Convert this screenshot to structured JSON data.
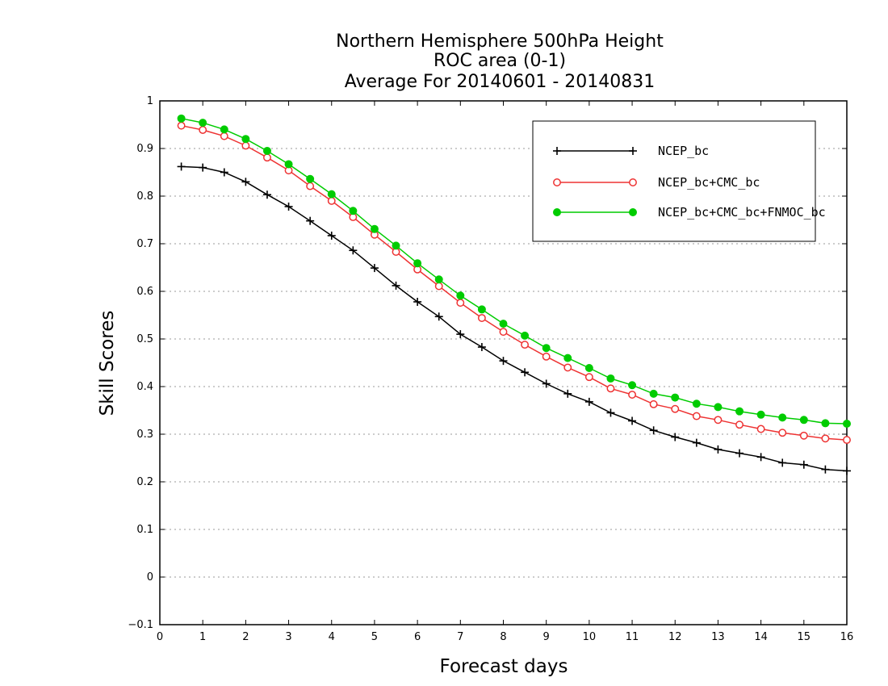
{
  "chart_data": {
    "type": "line",
    "title": [
      "Northern Hemisphere 500hPa Height",
      "ROC area (0-1)",
      "Average For 20140601 - 20140831"
    ],
    "xlabel": "Forecast days",
    "ylabel": "Skill Scores",
    "xlim": [
      0,
      16
    ],
    "ylim": [
      -0.1,
      1
    ],
    "x_ticks": [
      "0",
      "1",
      "2",
      "3",
      "4",
      "5",
      "6",
      "7",
      "8",
      "9",
      "10",
      "11",
      "12",
      "13",
      "14",
      "15",
      "16"
    ],
    "y_ticks": [
      "−0.1",
      "0",
      "0.1",
      "0.2",
      "0.3",
      "0.4",
      "0.5",
      "0.6",
      "0.7",
      "0.8",
      "0.9",
      "1"
    ],
    "grid": "horizontal dotted",
    "legend_position": "top-right",
    "x": [
      0.5,
      1,
      1.5,
      2,
      2.5,
      3,
      3.5,
      4,
      4.5,
      5,
      5.5,
      6,
      6.5,
      7,
      7.5,
      8,
      8.5,
      9,
      9.5,
      10,
      10.5,
      11,
      11.5,
      12,
      12.5,
      13,
      13.5,
      14,
      14.5,
      15,
      15.5,
      16
    ],
    "series": [
      {
        "name": "NCEP_bc",
        "color": "#000000",
        "marker": "plus",
        "values": [
          0.862,
          0.86,
          0.85,
          0.83,
          0.803,
          0.778,
          0.748,
          0.717,
          0.686,
          0.649,
          0.612,
          0.578,
          0.547,
          0.51,
          0.483,
          0.454,
          0.43,
          0.406,
          0.385,
          0.368,
          0.345,
          0.328,
          0.308,
          0.294,
          0.282,
          0.268,
          0.26,
          0.252,
          0.24,
          0.236,
          0.226,
          0.223
        ]
      },
      {
        "name": "NCEP_bc+CMC_bc",
        "color": "#ee3333",
        "marker": "open-circle",
        "values": [
          0.948,
          0.939,
          0.926,
          0.906,
          0.881,
          0.854,
          0.821,
          0.79,
          0.756,
          0.719,
          0.683,
          0.646,
          0.611,
          0.576,
          0.544,
          0.515,
          0.488,
          0.463,
          0.44,
          0.42,
          0.396,
          0.383,
          0.363,
          0.353,
          0.338,
          0.33,
          0.32,
          0.311,
          0.303,
          0.297,
          0.291,
          0.288
        ]
      },
      {
        "name": "NCEP_bc+CMC_bc+FNMOC_bc",
        "color": "#00cc00",
        "marker": "filled-circle",
        "values": [
          0.963,
          0.954,
          0.94,
          0.92,
          0.895,
          0.867,
          0.836,
          0.804,
          0.769,
          0.731,
          0.696,
          0.659,
          0.625,
          0.591,
          0.562,
          0.532,
          0.507,
          0.481,
          0.46,
          0.439,
          0.417,
          0.403,
          0.385,
          0.377,
          0.364,
          0.357,
          0.348,
          0.341,
          0.335,
          0.33,
          0.323,
          0.322
        ]
      }
    ]
  }
}
